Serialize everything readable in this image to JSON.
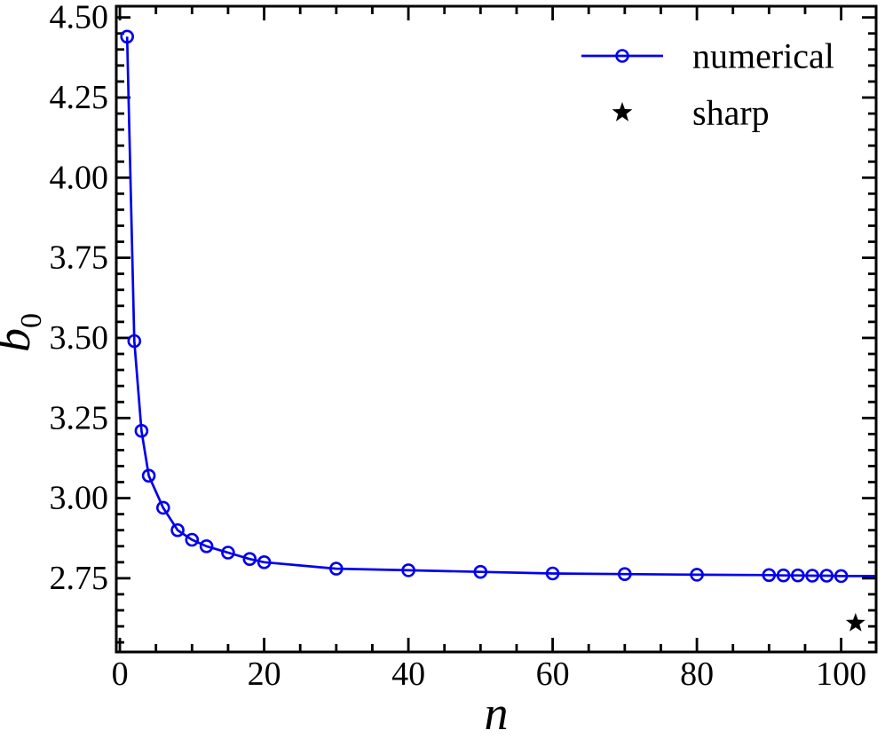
{
  "figure": {
    "background": "#ffffff",
    "frame_color": "#000000"
  },
  "chart_data": {
    "type": "line",
    "title": "",
    "xlabel": "n",
    "ylabel_base": "b",
    "ylabel_sub": "0",
    "xlim": [
      -0.5,
      104.85
    ],
    "ylim": [
      2.52,
      4.535
    ],
    "x_major_ticks": [
      0,
      20,
      40,
      60,
      80,
      100
    ],
    "x_minor_step": 5,
    "y_major_ticks": [
      2.75,
      3.0,
      3.25,
      3.5,
      3.75,
      4.0,
      4.25,
      4.5
    ],
    "y_minor_step": 0.05,
    "grid": false,
    "tick_direction": "in",
    "legend_position": "upper right",
    "series": [
      {
        "name": "numerical",
        "style": "line+marker",
        "marker": "open-circle",
        "color": "#0000ee",
        "x": [
          1,
          2,
          3,
          4,
          6,
          8,
          10,
          12,
          15,
          18,
          20,
          30,
          40,
          50,
          60,
          70,
          80,
          90,
          92,
          94,
          96,
          98,
          100
        ],
        "y": [
          4.44,
          3.49,
          3.21,
          3.07,
          2.97,
          2.9,
          2.87,
          2.85,
          2.83,
          2.81,
          2.8,
          2.78,
          2.775,
          2.77,
          2.765,
          2.763,
          2.761,
          2.76,
          2.759,
          2.759,
          2.758,
          2.758,
          2.757
        ],
        "line_extends_to_xlim_max": true
      },
      {
        "name": "sharp",
        "style": "scatter",
        "marker": "star",
        "color": "#000000",
        "x": [
          102
        ],
        "y": [
          2.61
        ]
      }
    ],
    "legend": {
      "items": [
        {
          "label": "numerical",
          "marker": "open-circle-on-line",
          "color": "#0000ee"
        },
        {
          "label": "sharp",
          "marker": "star",
          "color": "#000000"
        }
      ]
    }
  }
}
